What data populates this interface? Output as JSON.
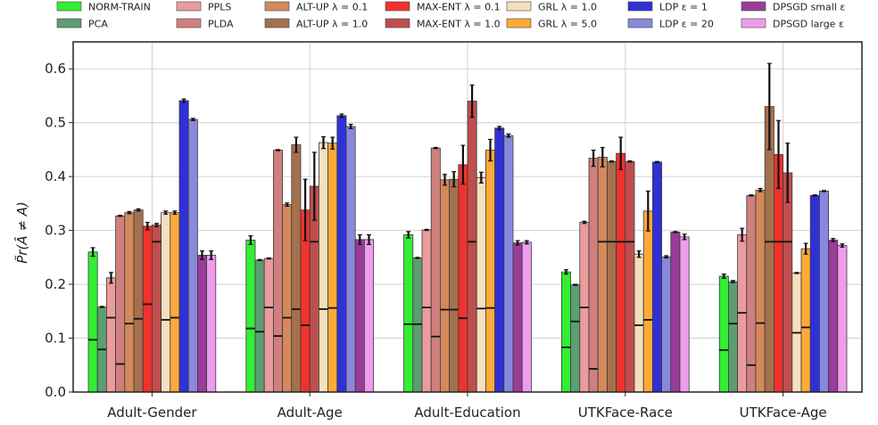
{
  "chart_data": {
    "type": "bar",
    "ylabel": "P̃r(Â ≠ A)",
    "ylim": [
      0,
      0.65
    ],
    "yticks": [
      "0.0",
      "0.1",
      "0.2",
      "0.3",
      "0.4",
      "0.5",
      "0.6"
    ],
    "grid": true,
    "legend_position": "top",
    "categories": [
      "Adult-Gender",
      "Adult-Age",
      "Adult-Education",
      "UTKFace-Race",
      "UTKFace-Age"
    ],
    "series": [
      {
        "name": "NORM-TRAIN",
        "color": "#33ee33",
        "values": [
          0.26,
          0.282,
          0.292,
          0.223,
          0.215
        ],
        "err": [
          0.008,
          0.008,
          0.006,
          0.004,
          0.004
        ],
        "inner": [
          0.097,
          0.118,
          0.126,
          0.083,
          0.078
        ]
      },
      {
        "name": "PCA",
        "color": "#5a9e72",
        "values": [
          0.158,
          0.245,
          0.249,
          0.199,
          0.205
        ],
        "err": [
          0.001,
          0.001,
          0.001,
          0.001,
          0.002
        ],
        "inner": [
          0.079,
          0.112,
          0.126,
          0.131,
          0.127
        ]
      },
      {
        "name": "PPLS",
        "color": "#ea9c9c",
        "values": [
          0.212,
          0.248,
          0.301,
          0.315,
          0.292
        ],
        "err": [
          0.01,
          0.001,
          0.001,
          0.002,
          0.012
        ],
        "inner": [
          0.138,
          0.157,
          0.157,
          0.157,
          0.147
        ]
      },
      {
        "name": "PLDA",
        "color": "#d07f7f",
        "values": [
          0.327,
          0.449,
          0.453,
          0.434,
          0.365
        ],
        "err": [
          0.001,
          0.001,
          0.001,
          0.015,
          0.001
        ],
        "inner": [
          0.052,
          0.104,
          0.103,
          0.043,
          0.05
        ]
      },
      {
        "name": "ALT-UP λ = 0.1",
        "color": "#d4895a",
        "values": [
          0.333,
          0.348,
          0.394,
          0.436,
          0.375
        ],
        "err": [
          0.002,
          0.003,
          0.01,
          0.018,
          0.003
        ],
        "inner": [
          0.127,
          0.138,
          0.153,
          0.279,
          0.128
        ]
      },
      {
        "name": "ALT-UP λ = 1.0",
        "color": "#a5704c",
        "values": [
          0.338,
          0.459,
          0.395,
          0.428,
          0.53
        ],
        "err": [
          0.002,
          0.014,
          0.014,
          0.001,
          0.08
        ],
        "inner": [
          0.136,
          0.154,
          0.153,
          0.279,
          0.279
        ]
      },
      {
        "name": "MAX-ENT λ = 0.1",
        "color": "#f0322c",
        "values": [
          0.308,
          0.338,
          0.422,
          0.443,
          0.441
        ],
        "err": [
          0.007,
          0.057,
          0.036,
          0.03,
          0.063
        ],
        "inner": [
          0.163,
          0.124,
          0.137,
          0.279,
          0.279
        ]
      },
      {
        "name": "MAX-ENT λ = 1.0",
        "color": "#bf4e4e",
        "values": [
          0.31,
          0.382,
          0.54,
          0.428,
          0.407
        ],
        "err": [
          0.003,
          0.063,
          0.03,
          0.001,
          0.055
        ],
        "inner": [
          0.279,
          0.279,
          0.279,
          0.279,
          0.279
        ]
      },
      {
        "name": "GRL λ = 1.0",
        "color": "#f6dfbd",
        "values": [
          0.333,
          0.463,
          0.398,
          0.256,
          0.221
        ],
        "err": [
          0.003,
          0.011,
          0.01,
          0.006,
          0.001
        ],
        "inner": [
          0.134,
          0.154,
          0.155,
          0.124,
          0.11
        ]
      },
      {
        "name": "GRL λ = 5.0",
        "color": "#ffaa38",
        "values": [
          0.333,
          0.462,
          0.449,
          0.336,
          0.266
        ],
        "err": [
          0.003,
          0.011,
          0.02,
          0.037,
          0.01
        ],
        "inner": [
          0.138,
          0.156,
          0.156,
          0.134,
          0.12
        ]
      },
      {
        "name": "LDP ε = 1",
        "color": "#3030d8",
        "values": [
          0.541,
          0.513,
          0.49,
          0.427,
          0.365
        ],
        "err": [
          0.003,
          0.003,
          0.003,
          0.001,
          0.001
        ],
        "inner": [
          null,
          null,
          null,
          null,
          null
        ]
      },
      {
        "name": "LDP ε = 20",
        "color": "#8888dc",
        "values": [
          0.506,
          0.493,
          0.476,
          0.251,
          0.373
        ],
        "err": [
          0.002,
          0.004,
          0.003,
          0.002,
          0.001
        ],
        "inner": [
          null,
          null,
          null,
          null,
          null
        ]
      },
      {
        "name": "DPSGD small ε",
        "color": "#9a3c9a",
        "values": [
          0.254,
          0.283,
          0.277,
          0.297,
          0.282
        ],
        "err": [
          0.008,
          0.009,
          0.004,
          0.001,
          0.003
        ],
        "inner": [
          null,
          null,
          null,
          null,
          null
        ]
      },
      {
        "name": "DPSGD large ε",
        "color": "#ee9ced",
        "values": [
          0.254,
          0.283,
          0.278,
          0.288,
          0.272
        ],
        "err": [
          0.008,
          0.009,
          0.003,
          0.005,
          0.003
        ],
        "inner": [
          null,
          null,
          null,
          null,
          null
        ]
      }
    ]
  }
}
